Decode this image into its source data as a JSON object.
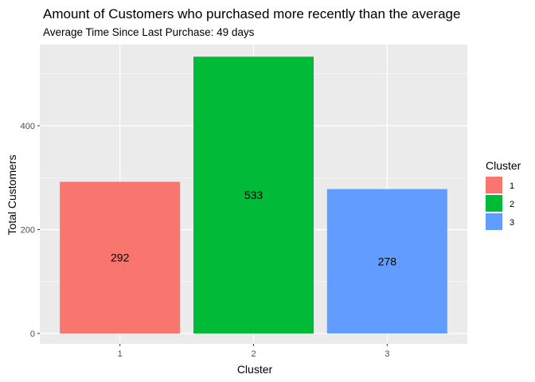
{
  "chart_data": {
    "type": "bar",
    "title": "Amount of Customers who purchased more recently than the average",
    "subtitle": "Average Time Since Last Purchase: 49 days",
    "xlabel": "Cluster",
    "ylabel": "Total Customers",
    "categories": [
      "1",
      "2",
      "3"
    ],
    "values": [
      292,
      533,
      278
    ],
    "data_labels": [
      "292",
      "533",
      "278"
    ],
    "colors": [
      "#F8766D",
      "#00BA38",
      "#619CFF"
    ],
    "ylim": [
      0,
      560
    ],
    "yticks": [
      0,
      200,
      400
    ],
    "ytick_labels": [
      "0",
      "200",
      "400"
    ],
    "grid": true,
    "panel_background": "#EBEBEB",
    "legend": {
      "title": "Cluster",
      "placement": "right",
      "entries": [
        "1",
        "2",
        "3"
      ]
    }
  }
}
